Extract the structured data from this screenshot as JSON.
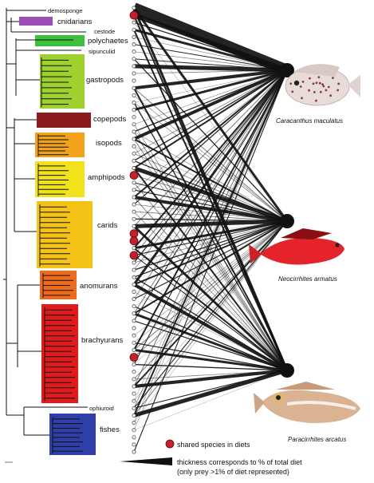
{
  "colors": {
    "cnidarians": "#9b4fb5",
    "polychaetes": "#3fbf3f",
    "gastropods": "#9fd12e",
    "copepods": "#8e1b1b",
    "isopods": "#f2a31b",
    "amphipods": "#f2e21b",
    "carids": "#f5c315",
    "anomurans": "#ef6a1b",
    "brachyurans": "#e01b1b",
    "fishes": "#2f3fa8",
    "shared_node": "#c81e2a",
    "links": "#111111"
  },
  "taxa": {
    "demosponge": "demosponge",
    "cnidarians": "cnidarians",
    "cestode": "cestode",
    "polychaetes": "polychaetes",
    "sipunculid": "sipunculid",
    "gastropods": "gastropods",
    "copepods": "copepods",
    "isopods": "isopods",
    "amphipods": "amphipods",
    "carids": "carids",
    "anomurans": "anomurans",
    "brachyurans": "brachyurans",
    "ophiuroid": "ophiuroid",
    "fishes": "fishes"
  },
  "predators": {
    "p1": "Caracanthus maculatus",
    "p2": "Neocirrhites armatus",
    "p3": "Paracirrhites arcatus"
  },
  "legend": {
    "shared": "shared species in diets",
    "thickness_line1": "thickness corresponds to % of total diet",
    "thickness_line2": "(only prey >1% of diet represented)"
  }
}
